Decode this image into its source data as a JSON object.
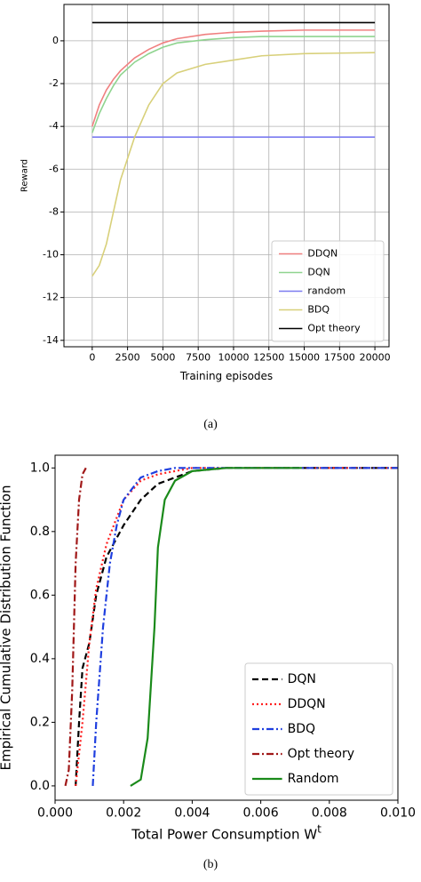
{
  "chart_data": [
    {
      "type": "line",
      "caption": "(a)",
      "xlabel": "Training episodes",
      "ylabel": "Reward",
      "xlim": [
        -2000,
        21000
      ],
      "ylim": [
        -14.3,
        1.7
      ],
      "xticks": [
        0,
        2500,
        5000,
        7500,
        10000,
        12500,
        15000,
        17500,
        20000
      ],
      "yticks": [
        -14,
        -12,
        -10,
        -8,
        -6,
        -4,
        -2,
        0
      ],
      "grid": true,
      "legend": "lower right",
      "series": [
        {
          "name": "DDQN",
          "color": "#f08080",
          "style": "solid",
          "x": [
            0,
            500,
            1000,
            1500,
            2000,
            3000,
            4000,
            5000,
            6000,
            8000,
            10000,
            12000,
            15000,
            20000
          ],
          "values": [
            -4,
            -3,
            -2.3,
            -1.8,
            -1.4,
            -0.8,
            -0.4,
            -0.1,
            0.1,
            0.3,
            0.4,
            0.45,
            0.5,
            0.5
          ]
        },
        {
          "name": "DQN",
          "color": "#8fd48f",
          "style": "solid",
          "x": [
            0,
            500,
            1000,
            1500,
            2000,
            3000,
            4000,
            5000,
            6000,
            8000,
            10000,
            12000,
            15000,
            20000
          ],
          "values": [
            -4.3,
            -3.4,
            -2.7,
            -2.1,
            -1.6,
            -1,
            -0.6,
            -0.3,
            -0.1,
            0.05,
            0.15,
            0.2,
            0.2,
            0.2
          ]
        },
        {
          "name": "random",
          "color": "#7b7bf0",
          "style": "solid",
          "x": [
            0,
            20000
          ],
          "values": [
            -4.5,
            -4.5
          ]
        },
        {
          "name": "BDQ",
          "color": "#d8d07a",
          "style": "solid",
          "x": [
            0,
            500,
            1000,
            1500,
            2000,
            3000,
            4000,
            5000,
            6000,
            8000,
            10000,
            12000,
            15000,
            20000
          ],
          "values": [
            -11,
            -10.5,
            -9.5,
            -8,
            -6.5,
            -4.5,
            -3,
            -2,
            -1.5,
            -1.1,
            -0.9,
            -0.7,
            -0.6,
            -0.55
          ]
        },
        {
          "name": "Opt theory",
          "color": "#000000",
          "style": "solid",
          "x": [
            0,
            20000
          ],
          "values": [
            0.85,
            0.85
          ]
        }
      ]
    },
    {
      "type": "line",
      "caption": "(b)",
      "xlabel": "Total Power Consumption W",
      "xlabel_sup": "t",
      "ylabel": "Empirical Cumulative Distribution Function",
      "xlim": [
        0,
        0.01
      ],
      "ylim": [
        -0.045,
        1.04
      ],
      "xticks": [
        {
          "value": 0,
          "label": "0.000"
        },
        {
          "value": 0.002,
          "label": "0.002"
        },
        {
          "value": 0.004,
          "label": "0.004"
        },
        {
          "value": 0.006,
          "label": "0.006"
        },
        {
          "value": 0.008,
          "label": "0.008"
        },
        {
          "value": 0.01,
          "label": "0.010"
        }
      ],
      "yticks": [
        {
          "value": 0,
          "label": "0.0"
        },
        {
          "value": 0.2,
          "label": "0.2"
        },
        {
          "value": 0.4,
          "label": "0.4"
        },
        {
          "value": 0.6,
          "label": "0.6"
        },
        {
          "value": 0.8,
          "label": "0.8"
        },
        {
          "value": 1,
          "label": "1.0"
        }
      ],
      "grid": false,
      "legend": "lower right",
      "series": [
        {
          "name": "DQN",
          "color": "#000000",
          "style": "dashed",
          "x": [
            0.0006,
            0.0007,
            0.0008,
            0.001,
            0.0012,
            0.0015,
            0.002,
            0.0025,
            0.003,
            0.004,
            0.005,
            0.01
          ],
          "values": [
            0,
            0.2,
            0.37,
            0.45,
            0.6,
            0.72,
            0.82,
            0.9,
            0.95,
            0.99,
            1,
            1
          ]
        },
        {
          "name": "DDQN",
          "color": "#ff2020",
          "style": "dotted",
          "x": [
            0.0006,
            0.0008,
            0.001,
            0.0012,
            0.0015,
            0.002,
            0.0025,
            0.003,
            0.004,
            0.01
          ],
          "values": [
            0,
            0.2,
            0.45,
            0.62,
            0.76,
            0.9,
            0.96,
            0.98,
            1,
            1
          ]
        },
        {
          "name": "BDQ",
          "color": "#1f3fdf",
          "style": "dashdot",
          "x": [
            0.0011,
            0.0012,
            0.0014,
            0.0016,
            0.0018,
            0.002,
            0.0025,
            0.003,
            0.0035,
            0.01
          ],
          "values": [
            0,
            0.2,
            0.5,
            0.7,
            0.82,
            0.9,
            0.97,
            0.99,
            1,
            1
          ]
        },
        {
          "name": "Opt theory",
          "color": "#a01818",
          "style": "dashdot",
          "x": [
            0.0003,
            0.0004,
            0.0005,
            0.0006,
            0.0007,
            0.0008,
            0.0009
          ],
          "values": [
            0,
            0.05,
            0.3,
            0.7,
            0.9,
            0.98,
            1
          ]
        },
        {
          "name": "Random",
          "color": "#1a8a1a",
          "style": "solid",
          "x": [
            0.0022,
            0.0025,
            0.0027,
            0.0029,
            0.003,
            0.0032,
            0.0035,
            0.004,
            0.005,
            0.0072
          ],
          "values": [
            0,
            0.02,
            0.15,
            0.5,
            0.75,
            0.9,
            0.96,
            0.99,
            1,
            1
          ]
        }
      ]
    }
  ]
}
